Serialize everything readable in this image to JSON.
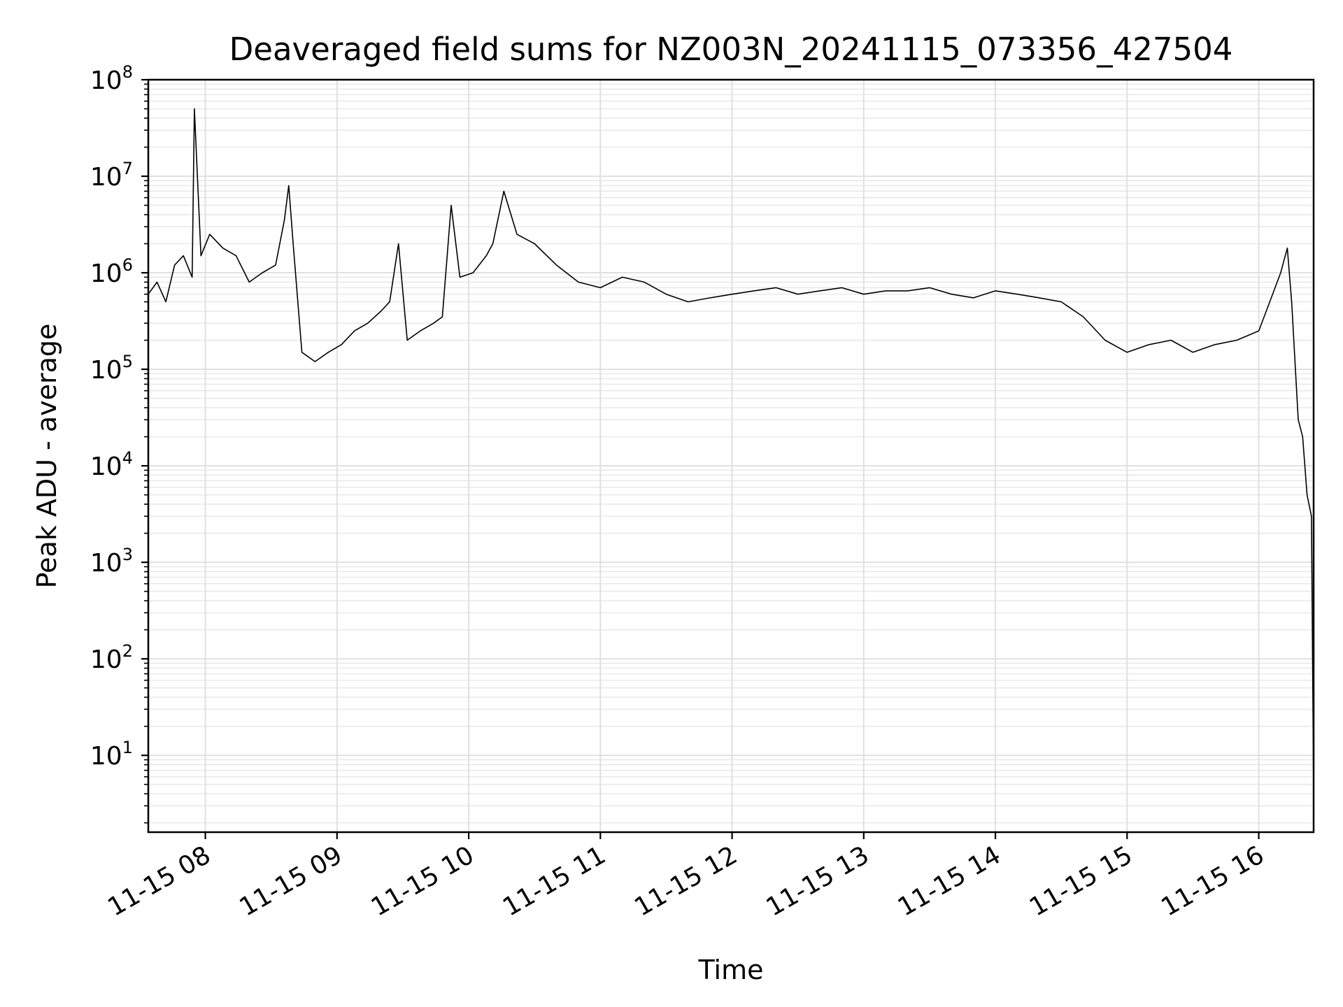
{
  "chart_data": {
    "type": "line",
    "title": "Deaveraged field sums for NZ003N_20241115_073356_427504",
    "xlabel": "Time",
    "ylabel": "Peak ADU - average",
    "yscale": "log",
    "ylim": [
      1.6,
      100000000
    ],
    "xlim": [
      "2024-11-15 07:34",
      "2024-11-15 16:25"
    ],
    "grid": "major and minor, light grey",
    "legend": "none",
    "line_color": "#000000",
    "x_ticks": [
      "11-15 08",
      "11-15 09",
      "11-15 10",
      "11-15 11",
      "11-15 12",
      "11-15 13",
      "11-15 14",
      "11-15 15",
      "11-15 16"
    ],
    "y_ticks": [
      {
        "base": "10",
        "exp": "1"
      },
      {
        "base": "10",
        "exp": "2"
      },
      {
        "base": "10",
        "exp": "3"
      },
      {
        "base": "10",
        "exp": "4"
      },
      {
        "base": "10",
        "exp": "5"
      },
      {
        "base": "10",
        "exp": "6"
      },
      {
        "base": "10",
        "exp": "7"
      },
      {
        "base": "10",
        "exp": "8"
      }
    ],
    "series": [
      {
        "x": [
          "2024-11-15 07:34",
          "2024-11-15 07:38",
          "2024-11-15 07:42",
          "2024-11-15 07:46",
          "2024-11-15 07:50",
          "2024-11-15 07:54",
          "2024-11-15 07:55",
          "2024-11-15 07:58",
          "2024-11-15 08:02",
          "2024-11-15 08:08",
          "2024-11-15 08:14",
          "2024-11-15 08:20",
          "2024-11-15 08:26",
          "2024-11-15 08:32",
          "2024-11-15 08:36",
          "2024-11-15 08:38",
          "2024-11-15 08:40",
          "2024-11-15 08:44",
          "2024-11-15 08:50",
          "2024-11-15 08:56",
          "2024-11-15 09:02",
          "2024-11-15 09:08",
          "2024-11-15 09:14",
          "2024-11-15 09:20",
          "2024-11-15 09:24",
          "2024-11-15 09:28",
          "2024-11-15 09:32",
          "2024-11-15 09:38",
          "2024-11-15 09:44",
          "2024-11-15 09:48",
          "2024-11-15 09:52",
          "2024-11-15 09:56",
          "2024-11-15 10:02",
          "2024-11-15 10:08",
          "2024-11-15 10:11",
          "2024-11-15 10:16",
          "2024-11-15 10:22",
          "2024-11-15 10:30",
          "2024-11-15 10:40",
          "2024-11-15 10:50",
          "2024-11-15 11:00",
          "2024-11-15 11:10",
          "2024-11-15 11:20",
          "2024-11-15 11:30",
          "2024-11-15 11:40",
          "2024-11-15 11:50",
          "2024-11-15 12:00",
          "2024-11-15 12:10",
          "2024-11-15 12:20",
          "2024-11-15 12:30",
          "2024-11-15 12:40",
          "2024-11-15 12:50",
          "2024-11-15 13:00",
          "2024-11-15 13:10",
          "2024-11-15 13:20",
          "2024-11-15 13:30",
          "2024-11-15 13:40",
          "2024-11-15 13:50",
          "2024-11-15 14:00",
          "2024-11-15 14:10",
          "2024-11-15 14:20",
          "2024-11-15 14:30",
          "2024-11-15 14:40",
          "2024-11-15 14:50",
          "2024-11-15 15:00",
          "2024-11-15 15:10",
          "2024-11-15 15:20",
          "2024-11-15 15:30",
          "2024-11-15 15:40",
          "2024-11-15 15:50",
          "2024-11-15 16:00",
          "2024-11-15 16:05",
          "2024-11-15 16:10",
          "2024-11-15 16:13",
          "2024-11-15 16:15",
          "2024-11-15 16:18",
          "2024-11-15 16:20",
          "2024-11-15 16:22",
          "2024-11-15 16:24",
          "2024-11-15 16:25"
        ],
        "y": [
          600000,
          800000,
          500000,
          1200000,
          1500000,
          900000,
          50000000,
          1500000,
          2500000,
          1800000,
          1500000,
          800000,
          1000000,
          1200000,
          3500000,
          8000000,
          2000000,
          150000,
          120000,
          150000,
          180000,
          250000,
          300000,
          400000,
          500000,
          2000000,
          200000,
          250000,
          300000,
          350000,
          5000000,
          900000,
          1000000,
          1500000,
          2000000,
          7000000,
          2500000,
          2000000,
          1200000,
          800000,
          700000,
          900000,
          800000,
          600000,
          500000,
          550000,
          600000,
          650000,
          700000,
          600000,
          650000,
          700000,
          600000,
          650000,
          650000,
          700000,
          600000,
          550000,
          650000,
          600000,
          550000,
          500000,
          350000,
          200000,
          150000,
          180000,
          200000,
          150000,
          180000,
          200000,
          250000,
          500000,
          1000000,
          1800000,
          500000,
          30000,
          20000,
          5000,
          3000,
          4
        ]
      }
    ]
  }
}
